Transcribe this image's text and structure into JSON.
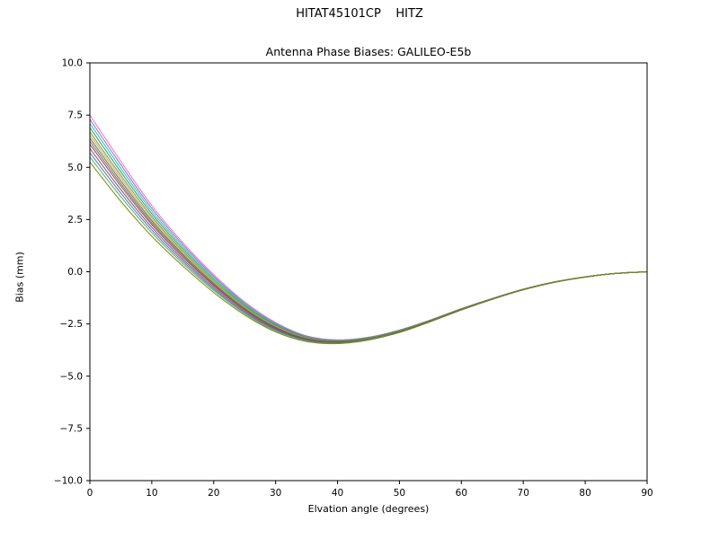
{
  "figure": {
    "suptitle": "HITAT45101CP    HITZ",
    "title": "Antenna Phase Biases: GALILEO-E5b",
    "xlabel": "Elvation angle (degrees)",
    "ylabel": "Bias (mm)"
  },
  "chart_data": {
    "type": "line",
    "suptitle": "HITAT45101CP    HITZ",
    "title": "Antenna Phase Biases: GALILEO-E5b",
    "xlabel": "Elvation angle (degrees)",
    "ylabel": "Bias (mm)",
    "xlim": [
      0,
      90
    ],
    "ylim": [
      -10,
      10
    ],
    "grid": false,
    "legend": "none",
    "xticks": [
      0,
      10,
      20,
      30,
      40,
      50,
      60,
      70,
      80,
      90
    ],
    "xtick_labels": [
      "0",
      "10",
      "20",
      "30",
      "40",
      "50",
      "60",
      "70",
      "80",
      "90"
    ],
    "yticks": [
      10,
      7.5,
      5,
      2.5,
      0,
      -2.5,
      -5,
      -7.5,
      -10
    ],
    "ytick_labels": [
      "10.0",
      "7.5",
      "5.0",
      "2.5",
      "0.0",
      "−2.5",
      "−5.0",
      "−7.5",
      "−10.0"
    ],
    "x": [
      0,
      5,
      10,
      15,
      20,
      25,
      30,
      35,
      40,
      45,
      50,
      55,
      60,
      65,
      70,
      75,
      80,
      85,
      90
    ],
    "series": [
      {
        "name": "curve-1",
        "color": "#e377c2",
        "values": [
          7.5,
          5.29,
          3.17,
          1.4,
          -0.13,
          -1.44,
          -2.43,
          -3.07,
          -3.26,
          -3.13,
          -2.79,
          -2.31,
          -1.77,
          -1.28,
          -0.83,
          -0.49,
          -0.24,
          -0.08,
          0.0
        ]
      },
      {
        "name": "curve-2",
        "color": "#9467bd",
        "values": [
          7.3,
          5.12,
          3.04,
          1.3,
          -0.21,
          -1.5,
          -2.47,
          -3.09,
          -3.28,
          -3.15,
          -2.8,
          -2.31,
          -1.77,
          -1.28,
          -0.84,
          -0.49,
          -0.25,
          -0.08,
          0.0
        ]
      },
      {
        "name": "curve-3",
        "color": "#17becf",
        "values": [
          7.1,
          4.95,
          2.91,
          1.2,
          -0.28,
          -1.55,
          -2.51,
          -3.12,
          -3.29,
          -3.16,
          -2.81,
          -2.32,
          -1.78,
          -1.29,
          -0.84,
          -0.49,
          -0.25,
          -0.08,
          0.0
        ]
      },
      {
        "name": "curve-4",
        "color": "#2ca02c",
        "values": [
          6.9,
          4.78,
          2.78,
          1.1,
          -0.36,
          -1.61,
          -2.55,
          -3.14,
          -3.31,
          -3.17,
          -2.82,
          -2.33,
          -1.78,
          -1.29,
          -0.84,
          -0.49,
          -0.25,
          -0.08,
          0.0
        ]
      },
      {
        "name": "curve-5",
        "color": "#7f7f7f",
        "values": [
          6.7,
          4.61,
          2.65,
          1.0,
          -0.44,
          -1.67,
          -2.59,
          -3.16,
          -3.33,
          -3.18,
          -2.84,
          -2.34,
          -1.79,
          -1.29,
          -0.85,
          -0.5,
          -0.25,
          -0.08,
          0.0
        ]
      },
      {
        "name": "curve-6",
        "color": "#bcbd22",
        "values": [
          6.55,
          4.48,
          2.55,
          0.93,
          -0.49,
          -1.71,
          -2.62,
          -3.18,
          -3.34,
          -3.19,
          -2.84,
          -2.34,
          -1.8,
          -1.3,
          -0.85,
          -0.5,
          -0.25,
          -0.08,
          0.0
        ]
      },
      {
        "name": "curve-7",
        "color": "#8c564b",
        "values": [
          6.4,
          4.35,
          2.45,
          0.85,
          -0.55,
          -1.75,
          -2.65,
          -3.2,
          -3.35,
          -3.2,
          -2.85,
          -2.35,
          -1.8,
          -1.3,
          -0.85,
          -0.5,
          -0.25,
          -0.08,
          0.0
        ]
      },
      {
        "name": "curve-8",
        "color": "#2e8b57",
        "values": [
          6.25,
          4.22,
          2.35,
          0.78,
          -0.61,
          -1.79,
          -2.68,
          -3.22,
          -3.36,
          -3.21,
          -2.86,
          -2.36,
          -1.8,
          -1.3,
          -0.85,
          -0.5,
          -0.25,
          -0.08,
          0.0
        ]
      },
      {
        "name": "curve-9",
        "color": "#c71585",
        "values": [
          6.1,
          4.1,
          2.26,
          0.7,
          -0.66,
          -1.83,
          -2.71,
          -3.24,
          -3.37,
          -3.22,
          -2.87,
          -2.36,
          -1.81,
          -1.31,
          -0.85,
          -0.5,
          -0.25,
          -0.08,
          0.0
        ]
      },
      {
        "name": "curve-10",
        "color": "#556b2f",
        "values": [
          5.9,
          3.93,
          2.13,
          0.6,
          -0.74,
          -1.89,
          -2.75,
          -3.26,
          -3.39,
          -3.23,
          -2.88,
          -2.37,
          -1.82,
          -1.31,
          -0.86,
          -0.51,
          -0.25,
          -0.08,
          0.0
        ]
      },
      {
        "name": "curve-11",
        "color": "#6a5acd",
        "values": [
          5.7,
          3.76,
          2.0,
          0.5,
          -0.82,
          -1.95,
          -2.79,
          -3.28,
          -3.41,
          -3.24,
          -2.89,
          -2.38,
          -1.82,
          -1.31,
          -0.86,
          -0.51,
          -0.25,
          -0.08,
          0.0
        ]
      },
      {
        "name": "curve-12",
        "color": "#3cb371",
        "values": [
          5.5,
          3.59,
          1.87,
          0.4,
          -0.89,
          -2.0,
          -2.83,
          -3.31,
          -3.42,
          -3.25,
          -2.9,
          -2.39,
          -1.83,
          -1.32,
          -0.86,
          -0.51,
          -0.25,
          -0.08,
          0.0
        ]
      },
      {
        "name": "curve-13",
        "color": "#808000",
        "values": [
          5.25,
          3.37,
          1.7,
          0.28,
          -0.99,
          -2.07,
          -2.88,
          -3.34,
          -3.44,
          -3.27,
          -2.91,
          -2.39,
          -1.83,
          -1.32,
          -0.87,
          -0.51,
          -0.26,
          -0.08,
          0.0
        ]
      }
    ]
  }
}
